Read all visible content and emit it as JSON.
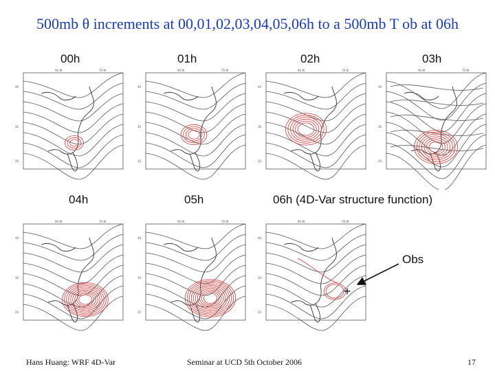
{
  "title": "500mb θ increments at 00,01,02,03,04,05,06h to a 500mb T ob at 06h",
  "panels": [
    {
      "label": "00h",
      "lat_ticks": [
        "40",
        "30",
        "20"
      ],
      "lon_ticks": [
        "90 W",
        "70 W"
      ]
    },
    {
      "label": "01h",
      "lat_ticks": [
        "40",
        "30",
        "20"
      ],
      "lon_ticks": [
        "90 W",
        "70 W"
      ]
    },
    {
      "label": "02h",
      "lat_ticks": [
        "40",
        "30",
        "20"
      ],
      "lon_ticks": [
        "90 W",
        "70 W"
      ]
    },
    {
      "label": "03h",
      "lat_ticks": [
        "40",
        "30",
        "20"
      ],
      "lon_ticks": [
        "90 W",
        "70 W"
      ]
    },
    {
      "label": "04h",
      "lat_ticks": [
        "40",
        "30",
        "20"
      ],
      "lon_ticks": [
        "90 W",
        "70 W"
      ]
    },
    {
      "label": "05h",
      "lat_ticks": [
        "40",
        "30",
        "20"
      ],
      "lon_ticks": [
        "90 W",
        "70 W"
      ]
    },
    {
      "label": "06h (4D-Var structure function)",
      "lat_ticks": [
        "40",
        "30",
        "20"
      ],
      "lon_ticks": [
        "90 W",
        "70 W"
      ]
    }
  ],
  "obs_label": "Obs",
  "obs_marker": "+",
  "footer": {
    "left": "Hans Huang: WRF 4D-Var",
    "center": "Seminar at UCD  5th October 2006",
    "page": "17"
  },
  "colors": {
    "title": "#1a3cb0",
    "increment_contours": "#d23a3a",
    "background_contours": "#555555"
  }
}
